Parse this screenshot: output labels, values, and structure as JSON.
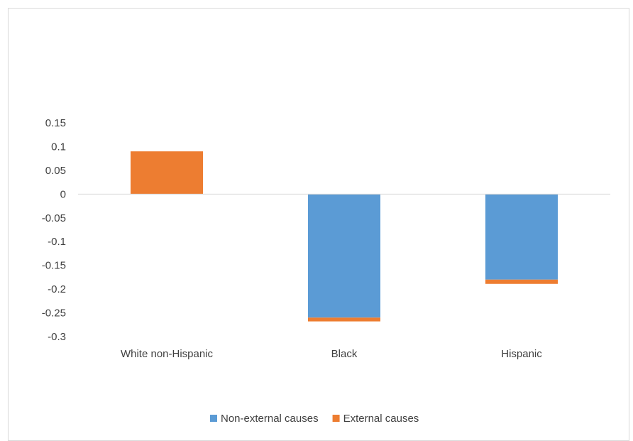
{
  "chart_data": {
    "type": "bar",
    "stacked": true,
    "categories": [
      "White non-Hispanic",
      "Black",
      "Hispanic"
    ],
    "series": [
      {
        "name": "Non-external causes",
        "values": [
          0.0,
          -0.26,
          -0.18
        ],
        "color": "#5b9bd5"
      },
      {
        "name": "External causes",
        "values": [
          0.09,
          -0.008,
          -0.009
        ],
        "color": "#ed7d31"
      }
    ],
    "ylim": [
      -0.3,
      0.15
    ],
    "yticks": [
      {
        "value": 0.15,
        "label": "0.15"
      },
      {
        "value": 0.1,
        "label": "0.1"
      },
      {
        "value": 0.05,
        "label": "0.05"
      },
      {
        "value": 0,
        "label": "0"
      },
      {
        "value": -0.05,
        "label": "-0.05"
      },
      {
        "value": -0.1,
        "label": "-0.1"
      },
      {
        "value": -0.15,
        "label": "-0.15"
      },
      {
        "value": -0.2,
        "label": "-0.2"
      },
      {
        "value": -0.25,
        "label": "-0.25"
      },
      {
        "value": -0.3,
        "label": "-0.3"
      }
    ],
    "grid": false,
    "legend_position": "bottom"
  }
}
